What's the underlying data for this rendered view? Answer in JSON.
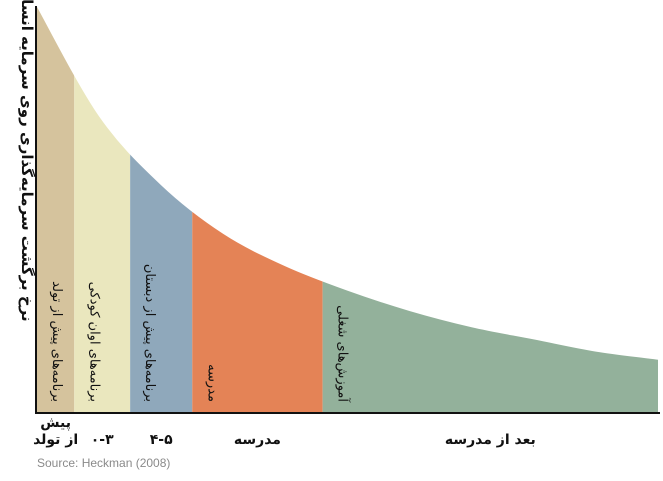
{
  "source": "Source: Heckman (2008)",
  "chart_data": {
    "type": "area",
    "ylabel": "نرخ برگشت سرمایه‌گذاری روی سرمایه انسانی",
    "xlabel": "",
    "grid": false,
    "curve": {
      "x": [
        0,
        1,
        2,
        3,
        4,
        5,
        6,
        7,
        8,
        9,
        10
      ],
      "y": [
        100,
        73,
        56,
        44,
        36,
        30,
        25,
        21,
        18,
        15,
        13
      ]
    },
    "bands": [
      {
        "x0": 0,
        "x1": 0.6,
        "label": "برنامه‌های پیش از تولد",
        "tick": "پیش\nاز تولد",
        "color": "#d5c39d"
      },
      {
        "x0": 0.6,
        "x1": 1.5,
        "label": "برنامه‌های اوان کودکی",
        "tick": "۰-۳",
        "color": "#eae7be"
      },
      {
        "x0": 1.5,
        "x1": 2.5,
        "label": "برنامه‌های پیش از دبستان",
        "tick": "۴-۵",
        "color": "#8fa8bb"
      },
      {
        "x0": 2.5,
        "x1": 4.6,
        "label": "مدرسه",
        "tick": "مدرسه",
        "color": "#e48356"
      },
      {
        "x0": 4.6,
        "x1": 10,
        "label": "آموزش‌های شغلی",
        "tick": "بعد از مدرسه",
        "color": "#93b19b"
      }
    ],
    "xlim": [
      0,
      10
    ],
    "ylim": [
      0,
      100
    ]
  }
}
